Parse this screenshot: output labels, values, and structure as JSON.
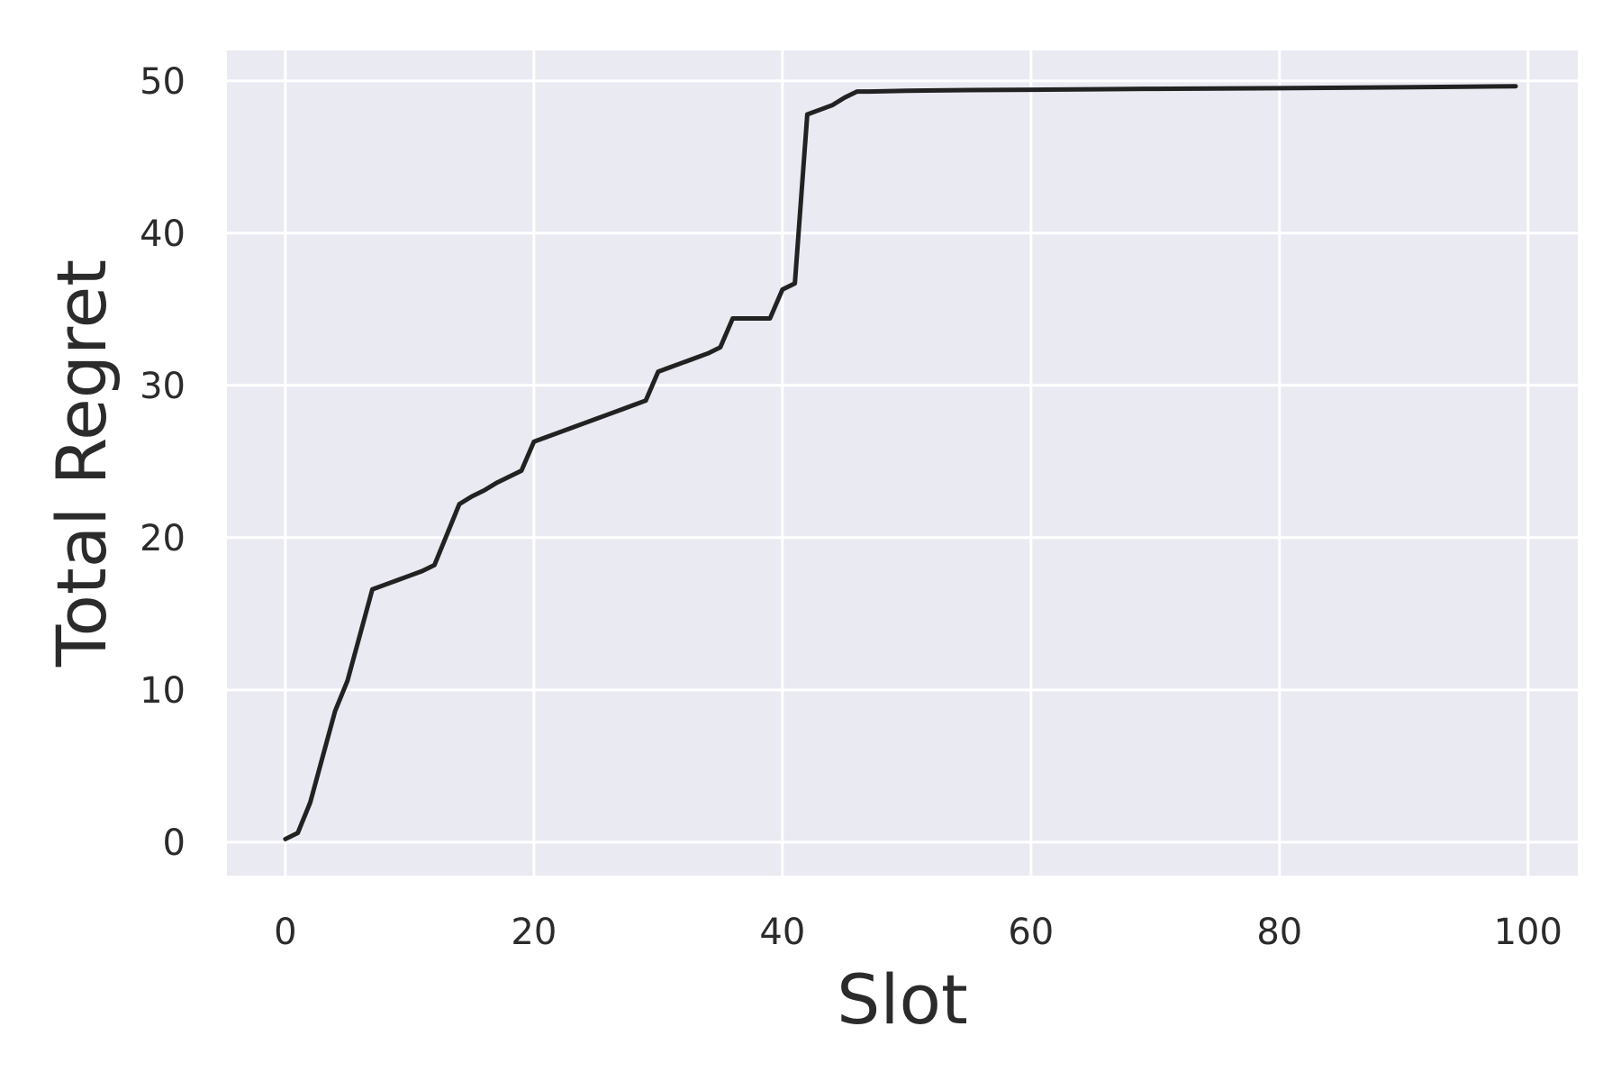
{
  "chart_data": {
    "type": "line",
    "title": "",
    "xlabel": "Slot",
    "ylabel": "Total Regret",
    "xlim": [
      -4.7,
      104
    ],
    "ylim": [
      -2.2,
      52
    ],
    "xticks": [
      0,
      20,
      40,
      60,
      80,
      100
    ],
    "yticks": [
      0,
      10,
      20,
      30,
      40,
      50
    ],
    "xtick_labels": [
      "0",
      "20",
      "40",
      "60",
      "80",
      "100"
    ],
    "ytick_labels": [
      "0",
      "10",
      "20",
      "30",
      "40",
      "50"
    ],
    "grid": true,
    "legend": "none",
    "colors": {
      "plot_background": "#eaeaf2",
      "grid": "#ffffff",
      "line": "#222222",
      "text": "#2b2b2b"
    },
    "series": [
      {
        "x": [
          0,
          1,
          2,
          3,
          4,
          5,
          6,
          7,
          8,
          9,
          10,
          11,
          12,
          13,
          14,
          15,
          16,
          17,
          18,
          19,
          20,
          21,
          22,
          23,
          24,
          25,
          26,
          27,
          28,
          29,
          30,
          31,
          32,
          33,
          34,
          35,
          36,
          37,
          38,
          39,
          40,
          41,
          42,
          43,
          44,
          45,
          46,
          47,
          50,
          55,
          60,
          65,
          70,
          75,
          80,
          85,
          90,
          95,
          99
        ],
        "y": [
          0.2,
          0.6,
          2.6,
          5.6,
          8.6,
          10.6,
          13.6,
          16.6,
          16.9,
          17.2,
          17.5,
          17.8,
          18.2,
          20.2,
          22.2,
          22.7,
          23.1,
          23.6,
          24.0,
          24.4,
          26.3,
          26.6,
          26.9,
          27.2,
          27.5,
          27.8,
          28.1,
          28.4,
          28.7,
          29.0,
          30.9,
          31.2,
          31.5,
          31.8,
          32.1,
          32.5,
          34.4,
          34.4,
          34.4,
          34.4,
          36.3,
          36.7,
          47.8,
          48.1,
          48.4,
          48.9,
          49.3,
          49.3,
          49.35,
          49.4,
          49.42,
          49.45,
          49.48,
          49.5,
          49.52,
          49.55,
          49.58,
          49.62,
          49.65
        ]
      }
    ]
  }
}
